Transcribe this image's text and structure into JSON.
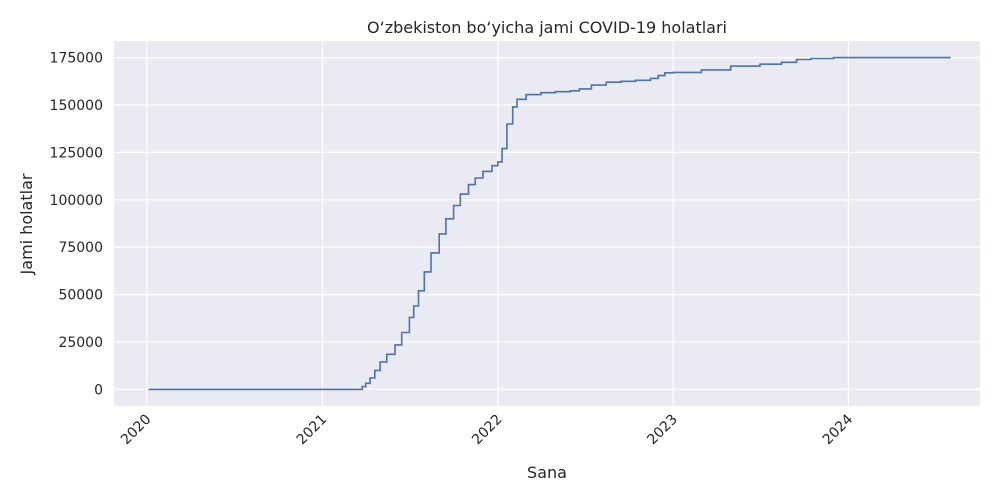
{
  "chart_data": {
    "type": "line",
    "title": "O‘zbekiston bo‘yicha jami COVID-19 holatlari",
    "xlabel": "Sana",
    "ylabel": "Jami holatlar",
    "grid": true,
    "legend": "none",
    "x_range": [
      "2019-10-25",
      "2024-10-01"
    ],
    "y_range": [
      -8750,
      183750
    ],
    "x_ticks": [
      "2020-01-01",
      "2021-01-01",
      "2022-01-01",
      "2023-01-01",
      "2024-01-01"
    ],
    "x_tick_labels": [
      "2020",
      "2021",
      "2022",
      "2023",
      "2024"
    ],
    "y_ticks": [
      0,
      25000,
      50000,
      75000,
      100000,
      125000,
      150000,
      175000
    ],
    "y_tick_labels": [
      "0",
      "25000",
      "50000",
      "75000",
      "100000",
      "125000",
      "150000",
      "175000"
    ],
    "series": [
      {
        "color": "#4c72b0",
        "points": [
          [
            "2020-01-05",
            0
          ],
          [
            "2021-03-20",
            0
          ],
          [
            "2021-03-25",
            1500
          ],
          [
            "2021-04-01",
            3200
          ],
          [
            "2021-04-10",
            6000
          ],
          [
            "2021-04-20",
            10000
          ],
          [
            "2021-05-01",
            14500
          ],
          [
            "2021-05-15",
            18500
          ],
          [
            "2021-06-01",
            23500
          ],
          [
            "2021-06-15",
            30000
          ],
          [
            "2021-07-01",
            38000
          ],
          [
            "2021-07-10",
            44000
          ],
          [
            "2021-07-20",
            52000
          ],
          [
            "2021-08-01",
            62000
          ],
          [
            "2021-08-15",
            72000
          ],
          [
            "2021-09-01",
            82000
          ],
          [
            "2021-09-15",
            90000
          ],
          [
            "2021-10-01",
            97000
          ],
          [
            "2021-10-15",
            103000
          ],
          [
            "2021-11-01",
            108000
          ],
          [
            "2021-11-15",
            111500
          ],
          [
            "2021-12-01",
            115000
          ],
          [
            "2021-12-20",
            118000
          ],
          [
            "2022-01-01",
            120000
          ],
          [
            "2022-01-10",
            127000
          ],
          [
            "2022-01-20",
            140000
          ],
          [
            "2022-02-01",
            149000
          ],
          [
            "2022-02-10",
            153000
          ],
          [
            "2022-03-01",
            155500
          ],
          [
            "2022-04-01",
            156500
          ],
          [
            "2022-05-01",
            157000
          ],
          [
            "2022-06-01",
            157500
          ],
          [
            "2022-06-20",
            158500
          ],
          [
            "2022-07-15",
            160500
          ],
          [
            "2022-08-15",
            162000
          ],
          [
            "2022-09-15",
            162500
          ],
          [
            "2022-10-15",
            163000
          ],
          [
            "2022-11-15",
            164000
          ],
          [
            "2022-12-01",
            165500
          ],
          [
            "2022-12-15",
            167000
          ],
          [
            "2023-01-01",
            167200
          ],
          [
            "2023-03-01",
            168500
          ],
          [
            "2023-05-01",
            170500
          ],
          [
            "2023-07-01",
            171500
          ],
          [
            "2023-08-15",
            172500
          ],
          [
            "2023-09-15",
            174000
          ],
          [
            "2023-10-15",
            174500
          ],
          [
            "2023-12-01",
            175000
          ],
          [
            "2024-08-01",
            175000
          ]
        ]
      }
    ]
  }
}
